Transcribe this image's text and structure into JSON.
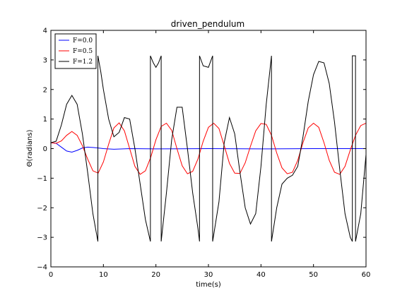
{
  "chart_data": {
    "type": "line",
    "title": "driven_pendulum",
    "xlabel": "time(s)",
    "ylabel": "Θ(radians)",
    "xlim": [
      0,
      60
    ],
    "ylim": [
      -4,
      4
    ],
    "xticks": [
      "0",
      "10",
      "20",
      "30",
      "40",
      "50",
      "60"
    ],
    "yticks": [
      "−4",
      "−3",
      "−2",
      "−1",
      "0",
      "1",
      "2",
      "3",
      "4"
    ],
    "grid": false,
    "legend_position": "top-left",
    "series": [
      {
        "name": "F=0.0",
        "color": "#0000ff",
        "x": [
          0,
          1,
          2,
          3,
          4,
          5,
          6,
          7,
          8,
          9,
          10,
          12,
          15,
          20,
          30,
          40,
          50,
          60
        ],
        "y": [
          0.2,
          0.18,
          0.05,
          -0.08,
          -0.12,
          -0.06,
          0.02,
          0.05,
          0.04,
          0.02,
          0.0,
          -0.02,
          0.0,
          -0.01,
          0.0,
          -0.01,
          0.0,
          0.0
        ]
      },
      {
        "name": "F=0.5",
        "color": "#ff0000",
        "x": [
          0,
          1,
          2,
          3,
          4,
          5,
          6,
          7,
          8,
          9,
          10,
          11,
          12,
          13,
          14,
          15,
          16,
          17,
          18,
          19,
          20,
          21,
          22,
          23,
          24,
          25,
          26,
          27,
          28,
          29,
          30,
          31,
          32,
          33,
          34,
          35,
          36,
          37,
          38,
          39,
          40,
          41,
          42,
          43,
          44,
          45,
          46,
          47,
          48,
          49,
          50,
          51,
          52,
          53,
          54,
          55,
          56,
          57,
          58,
          59,
          60
        ],
        "y": [
          0.2,
          0.18,
          0.26,
          0.45,
          0.58,
          0.45,
          0.1,
          -0.35,
          -0.75,
          -0.83,
          -0.45,
          0.15,
          0.7,
          0.87,
          0.6,
          0.0,
          -0.6,
          -0.87,
          -0.75,
          -0.3,
          0.3,
          0.75,
          0.86,
          0.62,
          0.0,
          -0.58,
          -0.85,
          -0.77,
          -0.35,
          0.25,
          0.72,
          0.86,
          0.68,
          0.1,
          -0.5,
          -0.83,
          -0.84,
          -0.48,
          0.08,
          0.6,
          0.85,
          0.82,
          0.45,
          -0.15,
          -0.65,
          -0.85,
          -0.8,
          -0.4,
          0.2,
          0.7,
          0.86,
          0.72,
          0.2,
          -0.4,
          -0.8,
          -0.87,
          -0.6,
          -0.05,
          0.45,
          0.78,
          0.86
        ]
      },
      {
        "name": "F=1.2",
        "color": "#000000",
        "x": [
          0,
          1,
          2,
          3,
          4,
          5,
          6,
          7,
          8,
          8.95,
          8.95,
          9.5,
          10,
          11,
          12,
          13,
          14,
          15,
          16,
          17,
          18,
          18.95,
          18.95,
          19.5,
          20,
          20.5,
          21,
          21,
          22,
          23,
          24,
          25,
          26,
          27,
          28,
          28.3,
          28.3,
          29,
          30,
          30.8,
          30.8,
          32,
          33,
          34,
          35,
          36,
          37,
          38,
          39,
          40,
          41,
          42,
          42,
          43,
          44,
          45,
          46,
          47,
          48,
          49,
          50,
          51,
          52,
          53,
          54,
          55,
          56,
          57,
          57.4,
          57.4,
          58,
          58,
          59,
          60
        ],
        "y": [
          0.2,
          0.25,
          0.8,
          1.5,
          1.8,
          1.5,
          0.5,
          -0.8,
          -2.2,
          -3.14,
          3.14,
          2.6,
          2.0,
          1.0,
          0.4,
          0.55,
          1.05,
          1.0,
          0.0,
          -1.2,
          -2.4,
          -3.14,
          3.14,
          2.9,
          2.75,
          2.9,
          3.14,
          -3.14,
          -1.5,
          0.3,
          1.4,
          1.4,
          0.0,
          -1.5,
          -2.7,
          -3.14,
          3.14,
          2.8,
          2.75,
          3.14,
          -3.14,
          -1.8,
          0.2,
          1.05,
          0.5,
          -0.8,
          -2.0,
          -2.55,
          -2.2,
          -0.6,
          1.5,
          3.14,
          -3.14,
          -2.0,
          -1.2,
          -1.0,
          -0.9,
          -0.6,
          0.4,
          1.6,
          2.5,
          2.95,
          2.9,
          2.2,
          0.9,
          -0.7,
          -2.2,
          -3.0,
          -3.14,
          3.14,
          3.14,
          -3.14,
          -2.2,
          -0.2
        ]
      }
    ]
  }
}
